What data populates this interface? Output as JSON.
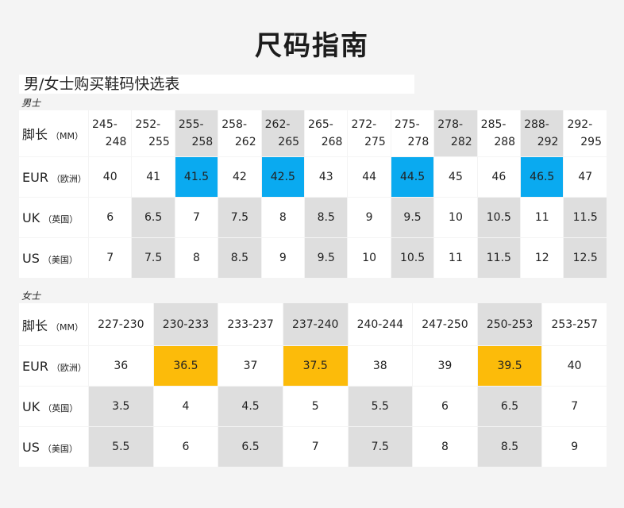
{
  "title": "尺码指南",
  "subtitle": "男/女士购买鞋码快选表",
  "men": {
    "label": "男士",
    "row_labels": {
      "foot": {
        "main": "脚长",
        "sub": "（MM）"
      },
      "eur": {
        "main": "EUR",
        "sub": "（欧洲）"
      },
      "uk": {
        "main": "UK",
        "sub": "（英国）"
      },
      "us": {
        "main": "US",
        "sub": "（美国）"
      }
    },
    "foot_ranges": [
      {
        "top": "245-",
        "bottom": "248",
        "gray": false
      },
      {
        "top": "252-",
        "bottom": "255",
        "gray": false
      },
      {
        "top": "255-",
        "bottom": "258",
        "gray": true
      },
      {
        "top": "258-",
        "bottom": "262",
        "gray": false
      },
      {
        "top": "262-",
        "bottom": "265",
        "gray": true
      },
      {
        "top": "265-",
        "bottom": "268",
        "gray": false
      },
      {
        "top": "272-",
        "bottom": "275",
        "gray": false
      },
      {
        "top": "275-",
        "bottom": "278",
        "gray": false
      },
      {
        "top": "278-",
        "bottom": "282",
        "gray": true
      },
      {
        "top": "285-",
        "bottom": "288",
        "gray": false
      },
      {
        "top": "288-",
        "bottom": "292",
        "gray": true
      },
      {
        "top": "292-",
        "bottom": "295",
        "gray": false
      }
    ],
    "eur": [
      "40",
      "41",
      "41.5",
      "42",
      "42.5",
      "43",
      "44",
      "44.5",
      "45",
      "46",
      "46.5",
      "47"
    ],
    "eur_highlight": [
      false,
      false,
      true,
      false,
      true,
      false,
      false,
      true,
      false,
      false,
      true,
      false
    ],
    "uk": [
      "6",
      "6.5",
      "7",
      "7.5",
      "8",
      "8.5",
      "9",
      "9.5",
      "10",
      "10.5",
      "11",
      "11.5"
    ],
    "us": [
      "7",
      "7.5",
      "8",
      "8.5",
      "9",
      "9.5",
      "10",
      "10.5",
      "11",
      "11.5",
      "12",
      "12.5"
    ],
    "size_gray": [
      false,
      true,
      false,
      true,
      false,
      true,
      false,
      true,
      false,
      true,
      false,
      true
    ]
  },
  "women": {
    "label": "女士",
    "row_labels": {
      "foot": {
        "main": "脚长",
        "sub": "（MM）"
      },
      "eur": {
        "main": "EUR",
        "sub": "（欧洲）"
      },
      "uk": {
        "main": "UK",
        "sub": "（英国）"
      },
      "us": {
        "main": "US",
        "sub": "（美国）"
      }
    },
    "foot_ranges": [
      "227-230",
      "230-233",
      "233-237",
      "237-240",
      "240-244",
      "247-250",
      "250-253",
      "253-257"
    ],
    "foot_gray": [
      false,
      true,
      false,
      true,
      false,
      false,
      true,
      false
    ],
    "eur": [
      "36",
      "36.5",
      "37",
      "37.5",
      "38",
      "39",
      "39.5",
      "40"
    ],
    "eur_highlight": [
      false,
      true,
      false,
      true,
      false,
      false,
      true,
      false
    ],
    "uk": [
      "3.5",
      "4",
      "4.5",
      "5",
      "5.5",
      "6",
      "6.5",
      "7"
    ],
    "us": [
      "5.5",
      "6",
      "6.5",
      "7",
      "7.5",
      "8",
      "8.5",
      "9"
    ],
    "size_gray": [
      true,
      false,
      true,
      false,
      true,
      false,
      true,
      false
    ]
  },
  "colors": {
    "men_highlight": "#0aaaf0",
    "women_highlight": "#fcbb0a",
    "gray_cell": "#dedede",
    "background": "#f4f4f4"
  }
}
